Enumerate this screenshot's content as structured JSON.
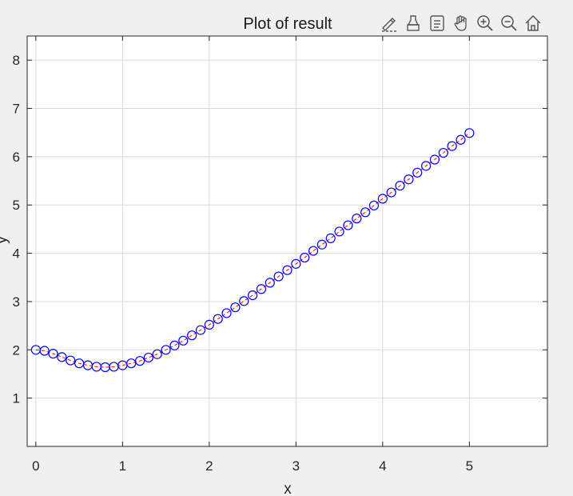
{
  "toolbar": {
    "icons": [
      "brush-edit-icon",
      "data-tips-icon",
      "legend-insert-icon",
      "pan-hand-icon",
      "zoom-in-icon",
      "zoom-out-icon",
      "home-restore-icon"
    ]
  },
  "colors": {
    "marker": "#0000ff",
    "line": "#ff0000",
    "grid": "#dcdcdc",
    "axes_bg": "#ffffff",
    "figure_bg": "#f0f0f0"
  },
  "chart_data": {
    "type": "line",
    "title": "Plot of result",
    "xlabel": "x",
    "ylabel": "y",
    "xlim": [
      -0.1,
      5.9
    ],
    "ylim": [
      0,
      8.5
    ],
    "xticks": [
      0,
      1,
      2,
      3,
      4,
      5
    ],
    "yticks": [
      1,
      2,
      3,
      4,
      5,
      6,
      7,
      8
    ],
    "grid": true,
    "series": [
      {
        "marker": "circle",
        "line_style": "dashed",
        "x": [
          0,
          0.1,
          0.2,
          0.3,
          0.4,
          0.5,
          0.6,
          0.7,
          0.8,
          0.9,
          1.0,
          1.1,
          1.2,
          1.3,
          1.4,
          1.5,
          1.6,
          1.7,
          1.8,
          1.9,
          2.0,
          2.1,
          2.2,
          2.3,
          2.4,
          2.5,
          2.6,
          2.7,
          2.8,
          2.9,
          3.0,
          3.1,
          3.2,
          3.3,
          3.4,
          3.5,
          3.6,
          3.7,
          3.8,
          3.9,
          4.0,
          4.1,
          4.2,
          4.3,
          4.4,
          4.5,
          4.6,
          4.7,
          4.8,
          4.9,
          5.0
        ],
        "y": [
          2.0,
          1.98,
          1.92,
          1.85,
          1.78,
          1.72,
          1.68,
          1.65,
          1.64,
          1.65,
          1.68,
          1.72,
          1.77,
          1.84,
          1.91,
          2.0,
          2.09,
          2.19,
          2.3,
          2.41,
          2.52,
          2.64,
          2.76,
          2.88,
          3.01,
          3.13,
          3.26,
          3.39,
          3.52,
          3.65,
          3.78,
          3.91,
          4.05,
          4.18,
          4.31,
          4.45,
          4.58,
          4.72,
          4.85,
          4.99,
          5.13,
          5.26,
          5.4,
          5.53,
          5.67,
          5.81,
          5.94,
          6.08,
          6.22,
          6.35,
          6.49
        ]
      }
    ]
  }
}
